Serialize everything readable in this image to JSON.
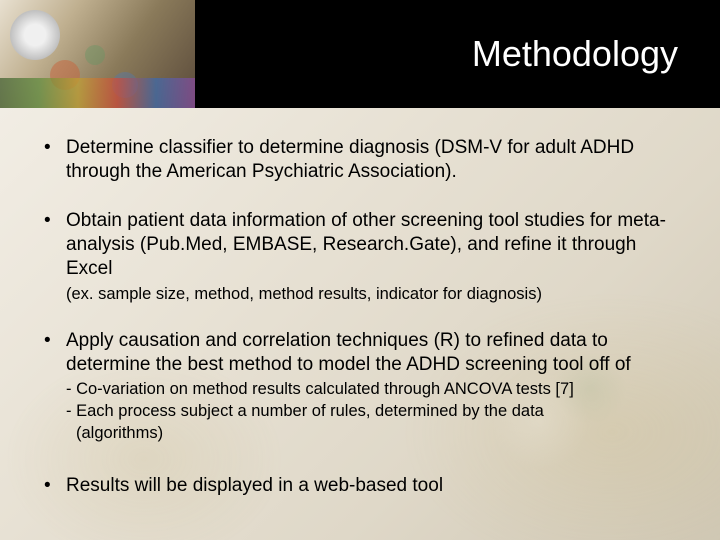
{
  "slide": {
    "title": "Methodology",
    "title_color": "#ffffff",
    "title_fontsize": 36,
    "header_bg": "#000000",
    "body_fontsize": 19,
    "sub_fontsize": 16.5,
    "bullets": [
      {
        "text": "Determine classifier to determine diagnosis (DSM-V for adult ADHD through the American Psychiatric Association)."
      },
      {
        "text": "Obtain patient data information of other screening tool studies for meta-analysis (Pub.Med, EMBASE, Research.Gate), and refine it through Excel",
        "sub": "(ex. sample size, method, method results, indicator for diagnosis)"
      },
      {
        "text": "Apply causation and correlation techniques (R) to refined data to determine the best method to model the ADHD screening tool off of",
        "sublines": [
          "- Co-variation on method results calculated through ANCOVA tests [7]",
          "- Each process subject a number of rules, determined by the data",
          "  (algorithms)"
        ]
      },
      {
        "text": "Results will be displayed in a web-based tool"
      }
    ]
  }
}
